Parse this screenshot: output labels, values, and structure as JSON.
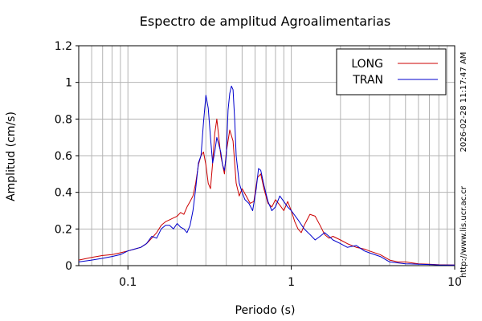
{
  "chart_data": {
    "type": "line",
    "title": "Espectro de amplitud Agroalimentarias",
    "xlabel": "Periodo (s)",
    "ylabel": "Amplitud (cm/s)",
    "x_scale": "log",
    "xlim": [
      0.05,
      10
    ],
    "ylim": [
      0,
      1.2
    ],
    "x_ticks": [
      {
        "value": 0.1,
        "label": "0.1"
      },
      {
        "value": 1,
        "label": "1"
      },
      {
        "value": 10,
        "label": "10"
      }
    ],
    "y_ticks": [
      {
        "value": 0,
        "label": "0"
      },
      {
        "value": 0.2,
        "label": "0.2"
      },
      {
        "value": 0.4,
        "label": "0.4"
      },
      {
        "value": 0.6,
        "label": "0.6"
      },
      {
        "value": 0.8,
        "label": "0.8"
      },
      {
        "value": 1.0,
        "label": "1"
      },
      {
        "value": 1.2,
        "label": "1.2"
      }
    ],
    "grid": true,
    "legend_position": "top-right",
    "series": [
      {
        "name": "LONG",
        "color": "#cc0000",
        "points": [
          [
            0.05,
            0.03
          ],
          [
            0.06,
            0.045
          ],
          [
            0.07,
            0.055
          ],
          [
            0.08,
            0.06
          ],
          [
            0.09,
            0.07
          ],
          [
            0.1,
            0.08
          ],
          [
            0.11,
            0.09
          ],
          [
            0.12,
            0.1
          ],
          [
            0.13,
            0.12
          ],
          [
            0.14,
            0.15
          ],
          [
            0.15,
            0.18
          ],
          [
            0.16,
            0.22
          ],
          [
            0.17,
            0.24
          ],
          [
            0.18,
            0.25
          ],
          [
            0.19,
            0.26
          ],
          [
            0.2,
            0.27
          ],
          [
            0.21,
            0.29
          ],
          [
            0.22,
            0.28
          ],
          [
            0.23,
            0.32
          ],
          [
            0.24,
            0.35
          ],
          [
            0.25,
            0.38
          ],
          [
            0.26,
            0.45
          ],
          [
            0.27,
            0.55
          ],
          [
            0.28,
            0.6
          ],
          [
            0.29,
            0.62
          ],
          [
            0.3,
            0.55
          ],
          [
            0.31,
            0.45
          ],
          [
            0.32,
            0.42
          ],
          [
            0.33,
            0.56
          ],
          [
            0.34,
            0.72
          ],
          [
            0.35,
            0.8
          ],
          [
            0.36,
            0.7
          ],
          [
            0.37,
            0.6
          ],
          [
            0.38,
            0.55
          ],
          [
            0.39,
            0.5
          ],
          [
            0.4,
            0.62
          ],
          [
            0.42,
            0.74
          ],
          [
            0.44,
            0.68
          ],
          [
            0.46,
            0.45
          ],
          [
            0.48,
            0.38
          ],
          [
            0.5,
            0.42
          ],
          [
            0.53,
            0.38
          ],
          [
            0.56,
            0.34
          ],
          [
            0.59,
            0.35
          ],
          [
            0.62,
            0.48
          ],
          [
            0.65,
            0.5
          ],
          [
            0.68,
            0.42
          ],
          [
            0.72,
            0.34
          ],
          [
            0.76,
            0.32
          ],
          [
            0.8,
            0.36
          ],
          [
            0.85,
            0.33
          ],
          [
            0.9,
            0.3
          ],
          [
            0.95,
            0.35
          ],
          [
            1.0,
            0.3
          ],
          [
            1.05,
            0.24
          ],
          [
            1.1,
            0.2
          ],
          [
            1.15,
            0.18
          ],
          [
            1.2,
            0.22
          ],
          [
            1.3,
            0.28
          ],
          [
            1.4,
            0.27
          ],
          [
            1.5,
            0.22
          ],
          [
            1.6,
            0.17
          ],
          [
            1.7,
            0.15
          ],
          [
            1.8,
            0.16
          ],
          [
            2.0,
            0.14
          ],
          [
            2.2,
            0.12
          ],
          [
            2.5,
            0.1
          ],
          [
            2.8,
            0.09
          ],
          [
            3.0,
            0.08
          ],
          [
            3.5,
            0.06
          ],
          [
            4.0,
            0.03
          ],
          [
            4.5,
            0.02
          ],
          [
            5.0,
            0.02
          ],
          [
            6.0,
            0.01
          ],
          [
            7.0,
            0.008
          ],
          [
            8.0,
            0.005
          ],
          [
            10.0,
            0.003
          ]
        ]
      },
      {
        "name": "TRAN",
        "color": "#0000cc",
        "points": [
          [
            0.05,
            0.02
          ],
          [
            0.06,
            0.03
          ],
          [
            0.07,
            0.04
          ],
          [
            0.08,
            0.05
          ],
          [
            0.09,
            0.06
          ],
          [
            0.1,
            0.08
          ],
          [
            0.11,
            0.09
          ],
          [
            0.12,
            0.1
          ],
          [
            0.13,
            0.12
          ],
          [
            0.14,
            0.16
          ],
          [
            0.15,
            0.15
          ],
          [
            0.16,
            0.2
          ],
          [
            0.17,
            0.22
          ],
          [
            0.18,
            0.22
          ],
          [
            0.19,
            0.2
          ],
          [
            0.2,
            0.23
          ],
          [
            0.21,
            0.21
          ],
          [
            0.22,
            0.2
          ],
          [
            0.23,
            0.18
          ],
          [
            0.24,
            0.22
          ],
          [
            0.25,
            0.3
          ],
          [
            0.26,
            0.42
          ],
          [
            0.27,
            0.56
          ],
          [
            0.28,
            0.6
          ],
          [
            0.29,
            0.78
          ],
          [
            0.3,
            0.93
          ],
          [
            0.31,
            0.86
          ],
          [
            0.32,
            0.7
          ],
          [
            0.33,
            0.56
          ],
          [
            0.34,
            0.62
          ],
          [
            0.35,
            0.7
          ],
          [
            0.36,
            0.66
          ],
          [
            0.37,
            0.62
          ],
          [
            0.38,
            0.55
          ],
          [
            0.39,
            0.52
          ],
          [
            0.4,
            0.6
          ],
          [
            0.41,
            0.85
          ],
          [
            0.42,
            0.94
          ],
          [
            0.43,
            0.98
          ],
          [
            0.44,
            0.96
          ],
          [
            0.45,
            0.8
          ],
          [
            0.46,
            0.6
          ],
          [
            0.48,
            0.45
          ],
          [
            0.5,
            0.4
          ],
          [
            0.52,
            0.36
          ],
          [
            0.55,
            0.34
          ],
          [
            0.58,
            0.3
          ],
          [
            0.61,
            0.42
          ],
          [
            0.63,
            0.53
          ],
          [
            0.65,
            0.52
          ],
          [
            0.68,
            0.44
          ],
          [
            0.72,
            0.35
          ],
          [
            0.76,
            0.3
          ],
          [
            0.8,
            0.32
          ],
          [
            0.85,
            0.38
          ],
          [
            0.9,
            0.35
          ],
          [
            0.95,
            0.32
          ],
          [
            1.0,
            0.3
          ],
          [
            1.1,
            0.25
          ],
          [
            1.2,
            0.2
          ],
          [
            1.3,
            0.17
          ],
          [
            1.4,
            0.14
          ],
          [
            1.5,
            0.16
          ],
          [
            1.6,
            0.18
          ],
          [
            1.7,
            0.16
          ],
          [
            1.8,
            0.14
          ],
          [
            2.0,
            0.12
          ],
          [
            2.2,
            0.1
          ],
          [
            2.5,
            0.11
          ],
          [
            2.8,
            0.08
          ],
          [
            3.0,
            0.07
          ],
          [
            3.5,
            0.05
          ],
          [
            4.0,
            0.02
          ],
          [
            4.5,
            0.015
          ],
          [
            5.0,
            0.01
          ],
          [
            6.0,
            0.008
          ],
          [
            7.0,
            0.006
          ],
          [
            8.0,
            0.004
          ],
          [
            10.0,
            0.003
          ]
        ]
      }
    ],
    "side_labels": {
      "timestamp": "2026-02-28 11:17:47 AM",
      "url": "http://www.lis.ucr.ac.cr"
    }
  }
}
